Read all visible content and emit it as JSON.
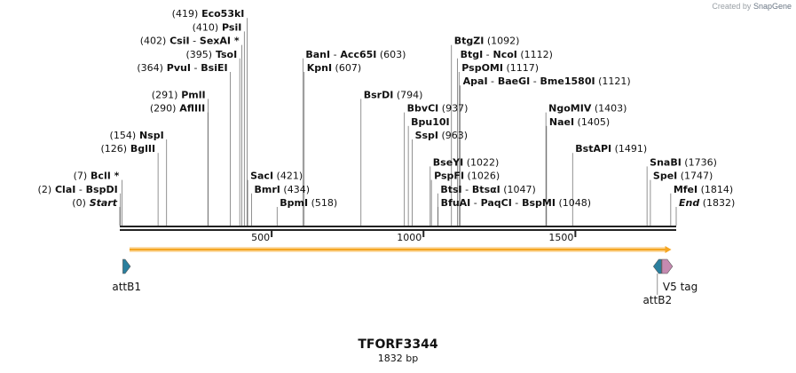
{
  "credit": {
    "prefix": "Created by",
    "brand": "SnapGene"
  },
  "plasmid": {
    "name": "TFORF3344",
    "length_label": "1832 bp",
    "length_bp": 1832
  },
  "ruler": {
    "ticks": [
      {
        "bp": 500,
        "label": "500"
      },
      {
        "bp": 1000,
        "label": "1000"
      },
      {
        "bp": 1500,
        "label": "1500"
      }
    ]
  },
  "sites": [
    {
      "segs": [
        {
          "t": "(0)"
        },
        {
          "t": "Start",
          "it": true
        }
      ],
      "pos": 0,
      "side": "L",
      "row": 0
    },
    {
      "segs": [
        {
          "t": "(2)"
        },
        {
          "t": "ClaI",
          "b": true
        },
        {
          "t": "-"
        },
        {
          "t": "BspDI",
          "b": true
        }
      ],
      "pos": 2,
      "side": "L",
      "row": 1
    },
    {
      "segs": [
        {
          "t": "(7)"
        },
        {
          "t": "BclI *",
          "b": true
        }
      ],
      "pos": 7,
      "side": "L",
      "row": 2
    },
    {
      "segs": [
        {
          "t": "(126)"
        },
        {
          "t": "BglII",
          "b": true
        }
      ],
      "pos": 126,
      "side": "L",
      "row": 4
    },
    {
      "segs": [
        {
          "t": "(154)"
        },
        {
          "t": "NspI",
          "b": true
        }
      ],
      "pos": 154,
      "side": "L",
      "row": 5
    },
    {
      "segs": [
        {
          "t": "(290)"
        },
        {
          "t": "AflIII",
          "b": true
        }
      ],
      "pos": 290,
      "side": "L",
      "row": 7
    },
    {
      "segs": [
        {
          "t": "(291)"
        },
        {
          "t": "PmlI",
          "b": true
        }
      ],
      "pos": 291,
      "side": "L",
      "row": 8
    },
    {
      "segs": [
        {
          "t": "(364)"
        },
        {
          "t": "PvuI",
          "b": true
        },
        {
          "t": "-"
        },
        {
          "t": "BsiEI",
          "b": true
        }
      ],
      "pos": 364,
      "side": "L",
      "row": 10
    },
    {
      "segs": [
        {
          "t": "(395)"
        },
        {
          "t": "TsoI",
          "b": true
        }
      ],
      "pos": 395,
      "side": "L",
      "row": 11
    },
    {
      "segs": [
        {
          "t": "(402)"
        },
        {
          "t": "CsiI",
          "b": true
        },
        {
          "t": "-"
        },
        {
          "t": "SexAI *",
          "b": true
        }
      ],
      "pos": 402,
      "side": "L",
      "row": 12
    },
    {
      "segs": [
        {
          "t": "(410)"
        },
        {
          "t": "PsiI",
          "b": true
        }
      ],
      "pos": 410,
      "side": "L",
      "row": 13
    },
    {
      "segs": [
        {
          "t": "(419)"
        },
        {
          "t": "Eco53kI",
          "b": true
        }
      ],
      "pos": 419,
      "side": "L",
      "row": 14
    },
    {
      "segs": [
        {
          "t": "SacI",
          "b": true
        },
        {
          "t": "(421)"
        }
      ],
      "pos": 421,
      "side": "R",
      "row": 2
    },
    {
      "segs": [
        {
          "t": "BmrI",
          "b": true
        },
        {
          "t": "(434)"
        }
      ],
      "pos": 434,
      "side": "R",
      "row": 1
    },
    {
      "segs": [
        {
          "t": "BpmI",
          "b": true
        },
        {
          "t": "(518)"
        }
      ],
      "pos": 518,
      "side": "R",
      "row": 0
    },
    {
      "segs": [
        {
          "t": "KpnI",
          "b": true
        },
        {
          "t": "(607)"
        }
      ],
      "pos": 607,
      "side": "R",
      "row": 10
    },
    {
      "segs": [
        {
          "t": "BanI",
          "b": true
        },
        {
          "t": "-"
        },
        {
          "t": "Acc65I",
          "b": true
        },
        {
          "t": "(603)"
        }
      ],
      "pos": 603,
      "side": "R",
      "row": 11
    },
    {
      "segs": [
        {
          "t": "BsrDI",
          "b": true
        },
        {
          "t": "(794)"
        }
      ],
      "pos": 794,
      "side": "R",
      "row": 8
    },
    {
      "segs": [
        {
          "t": "SspI",
          "b": true
        },
        {
          "t": "(963)"
        }
      ],
      "pos": 963,
      "side": "R",
      "row": 5
    },
    {
      "segs": [
        {
          "t": "Bpu10I",
          "b": true
        }
      ],
      "pos": 950,
      "side": "R",
      "row": 6
    },
    {
      "segs": [
        {
          "t": "BbvCI",
          "b": true
        },
        {
          "t": "(937)"
        }
      ],
      "pos": 937,
      "side": "R",
      "row": 7
    },
    {
      "segs": [
        {
          "t": "BseYI",
          "b": true
        },
        {
          "t": "(1022)"
        }
      ],
      "pos": 1022,
      "side": "R",
      "row": 3
    },
    {
      "segs": [
        {
          "t": "PspFI",
          "b": true
        },
        {
          "t": "(1026)"
        }
      ],
      "pos": 1026,
      "side": "R",
      "row": 2
    },
    {
      "segs": [
        {
          "t": "BtsI",
          "b": true
        },
        {
          "t": "-"
        },
        {
          "t": "BtsαI",
          "b": true
        },
        {
          "t": "(1047)"
        }
      ],
      "pos": 1047,
      "side": "R",
      "row": 1
    },
    {
      "segs": [
        {
          "t": "BfuAI",
          "b": true
        },
        {
          "t": "-"
        },
        {
          "t": "PaqCI",
          "b": true
        },
        {
          "t": "-"
        },
        {
          "t": "BspMI",
          "b": true
        },
        {
          "t": "(1048)"
        }
      ],
      "pos": 1048,
      "side": "R",
      "row": 0
    },
    {
      "segs": [
        {
          "t": "BtgZI",
          "b": true
        },
        {
          "t": "(1092)"
        }
      ],
      "pos": 1092,
      "side": "R",
      "row": 12
    },
    {
      "segs": [
        {
          "t": "BtgI",
          "b": true
        },
        {
          "t": "-"
        },
        {
          "t": "NcoI",
          "b": true
        },
        {
          "t": "(1112)"
        }
      ],
      "pos": 1112,
      "side": "R",
      "row": 11
    },
    {
      "segs": [
        {
          "t": "PspOMI",
          "b": true
        },
        {
          "t": "(1117)"
        }
      ],
      "pos": 1117,
      "side": "R",
      "row": 10
    },
    {
      "segs": [
        {
          "t": "ApaI",
          "b": true
        },
        {
          "t": "-"
        },
        {
          "t": "BaeGI",
          "b": true
        },
        {
          "t": "-"
        },
        {
          "t": "Bme1580I",
          "b": true
        },
        {
          "t": "(1121)"
        }
      ],
      "pos": 1121,
      "side": "R",
      "row": 9
    },
    {
      "segs": [
        {
          "t": "NgoMIV",
          "b": true
        },
        {
          "t": "(1403)"
        }
      ],
      "pos": 1403,
      "side": "R",
      "row": 7
    },
    {
      "segs": [
        {
          "t": "NaeI",
          "b": true
        },
        {
          "t": "(1405)"
        }
      ],
      "pos": 1405,
      "side": "R",
      "row": 6
    },
    {
      "segs": [
        {
          "t": "BstAPI",
          "b": true
        },
        {
          "t": "(1491)"
        }
      ],
      "pos": 1491,
      "side": "R",
      "row": 4
    },
    {
      "segs": [
        {
          "t": "SnaBI",
          "b": true
        },
        {
          "t": "(1736)"
        }
      ],
      "pos": 1736,
      "side": "R",
      "row": 3
    },
    {
      "segs": [
        {
          "t": "SpeI",
          "b": true
        },
        {
          "t": "(1747)"
        }
      ],
      "pos": 1747,
      "side": "R",
      "row": 2
    },
    {
      "segs": [
        {
          "t": "MfeI",
          "b": true
        },
        {
          "t": "(1814)"
        }
      ],
      "pos": 1814,
      "side": "R",
      "row": 1
    },
    {
      "segs": [
        {
          "t": "End",
          "it": true
        },
        {
          "t": "(1832)"
        }
      ],
      "pos": 1832,
      "side": "R",
      "row": 0
    }
  ],
  "orf": {
    "start_bp": 32,
    "end_bp": 1816,
    "color": "#f5a623"
  },
  "features": [
    {
      "name": "attB1",
      "start_bp": 10,
      "end_bp": 35,
      "color": "#2a7f9e",
      "dir": "fwd"
    },
    {
      "name": "attB2",
      "start_bp": 1757,
      "end_bp": 1783,
      "color": "#2a7f9e",
      "dir": "rev"
    },
    {
      "name": "V5 tag",
      "start_bp": 1785,
      "end_bp": 1820,
      "color": "#c58ab0",
      "dir": "fwd"
    }
  ]
}
